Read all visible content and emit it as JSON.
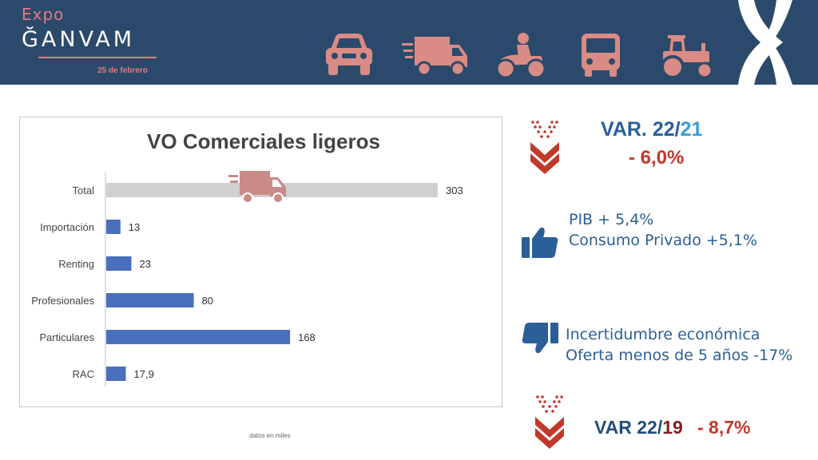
{
  "header": {
    "logo_expo": "Expo",
    "logo_brand": "ĞANVAM",
    "date": "25 de febrero",
    "vehicle_icons": [
      "car-icon",
      "delivery-truck-icon",
      "motorcycle-icon",
      "bus-icon",
      "tractor-icon"
    ],
    "accent_color": "#e07a84",
    "band_color": "#2b4a6b"
  },
  "chart_data": {
    "type": "bar",
    "orientation": "horizontal",
    "title": "VO Comerciales ligeros",
    "categories": [
      "Total",
      "Importación",
      "Renting",
      "Profesionales",
      "Particulares",
      "RAC"
    ],
    "values": [
      303,
      13,
      23,
      80,
      168,
      17.9
    ],
    "value_labels": [
      "303",
      "13",
      "23",
      "80",
      "168",
      "17,9"
    ],
    "colors": [
      "#d0d0d0",
      "#4a6fbd",
      "#4a6fbd",
      "#4a6fbd",
      "#4a6fbd",
      "#4a6fbd"
    ],
    "xlim": [
      0,
      303
    ],
    "grid": false,
    "xlabel": "",
    "ylabel": ""
  },
  "footnote": "datos en miles",
  "var_2221": {
    "label": "VAR. 22/",
    "year": "21",
    "value": "- 6,0%"
  },
  "positive": {
    "lines": [
      "PIB + 5,4%",
      "Consumo Privado +5,1%"
    ]
  },
  "negative": {
    "lines": [
      "Incertidumbre económica",
      "Oferta menos de 5 años -17%"
    ]
  },
  "var_2219": {
    "label": "VAR 22/",
    "year": "19",
    "value": "- 8,7%"
  }
}
